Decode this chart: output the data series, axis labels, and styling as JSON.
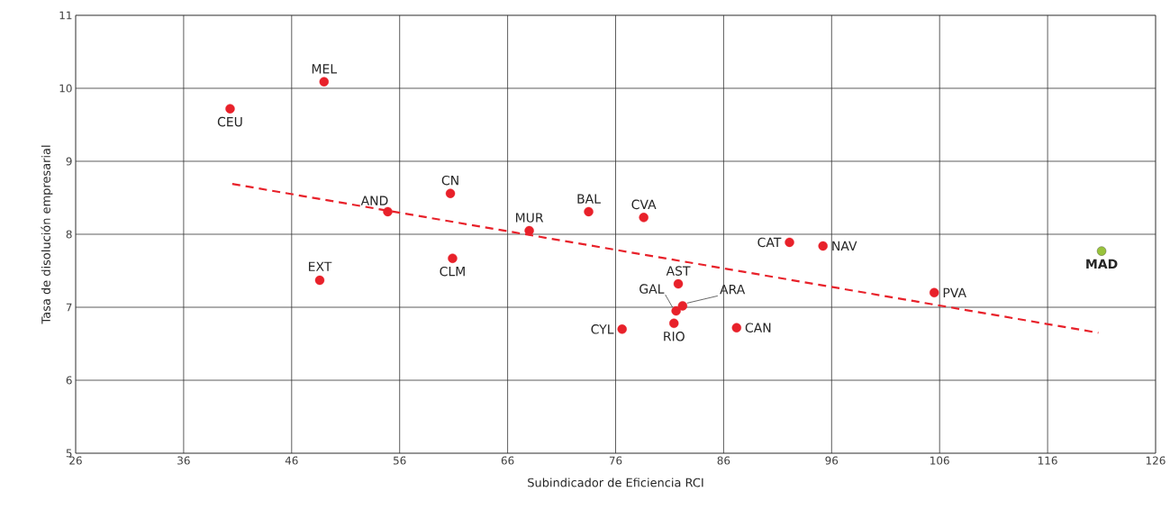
{
  "chart_data": {
    "type": "scatter",
    "xlabel": "Subindicador de Eficiencia RCI",
    "ylabel": "Tasa de disolución empresarial",
    "xlim": [
      26,
      126
    ],
    "xticks": [
      26,
      36,
      46,
      56,
      66,
      76,
      86,
      96,
      106,
      116,
      126
    ],
    "ylim": [
      5,
      11
    ],
    "yticks": [
      5,
      6,
      7,
      8,
      9,
      10,
      11
    ],
    "grid": true,
    "series": [
      {
        "color": "#e8212a",
        "marker": "circle",
        "x": [
          40.3,
          49.0,
          54.9,
          60.7,
          48.6,
          60.9,
          68.0,
          73.5,
          78.6,
          92.1,
          95.2,
          81.8,
          81.6,
          82.2,
          81.4,
          76.6,
          87.2,
          105.5
        ],
        "values": [
          9.72,
          10.09,
          8.31,
          8.56,
          7.37,
          7.67,
          8.05,
          8.31,
          8.23,
          7.89,
          7.84,
          7.32,
          6.95,
          7.02,
          6.78,
          6.7,
          6.72,
          7.2
        ]
      },
      {
        "color": "#99c33c",
        "marker": "circle",
        "x": [
          121.0
        ],
        "values": [
          7.77
        ]
      },
      {
        "type": "line",
        "color": "#e8212a",
        "line_style": "dashed",
        "marker": "none",
        "x": [
          40.5,
          120.7
        ],
        "values": [
          8.69,
          6.65
        ]
      }
    ],
    "annotations": [
      {
        "text": "CEU",
        "x": 40.3,
        "y": 9.72
      },
      {
        "text": "MEL",
        "x": 49.0,
        "y": 10.09
      },
      {
        "text": "AND",
        "x": 54.9,
        "y": 8.31
      },
      {
        "text": "CN",
        "x": 60.7,
        "y": 8.56
      },
      {
        "text": "EXT",
        "x": 48.6,
        "y": 7.37
      },
      {
        "text": "CLM",
        "x": 60.9,
        "y": 7.67
      },
      {
        "text": "MUR",
        "x": 68.0,
        "y": 8.05
      },
      {
        "text": "BAL",
        "x": 73.5,
        "y": 8.31
      },
      {
        "text": "CVA",
        "x": 78.6,
        "y": 8.23
      },
      {
        "text": "CAT",
        "x": 92.1,
        "y": 7.89
      },
      {
        "text": "NAV",
        "x": 95.2,
        "y": 7.84
      },
      {
        "text": "AST",
        "x": 81.8,
        "y": 7.32
      },
      {
        "text": "GAL",
        "x": 81.6,
        "y": 6.95
      },
      {
        "text": "ARA",
        "x": 82.2,
        "y": 7.02
      },
      {
        "text": "RIO",
        "x": 81.4,
        "y": 6.78
      },
      {
        "text": "CYL",
        "x": 76.6,
        "y": 6.7
      },
      {
        "text": "CAN",
        "x": 87.2,
        "y": 6.72
      },
      {
        "text": "PVA",
        "x": 105.5,
        "y": 7.2
      },
      {
        "text": "**MAD**",
        "x": 121.0,
        "y": 7.77
      }
    ]
  }
}
